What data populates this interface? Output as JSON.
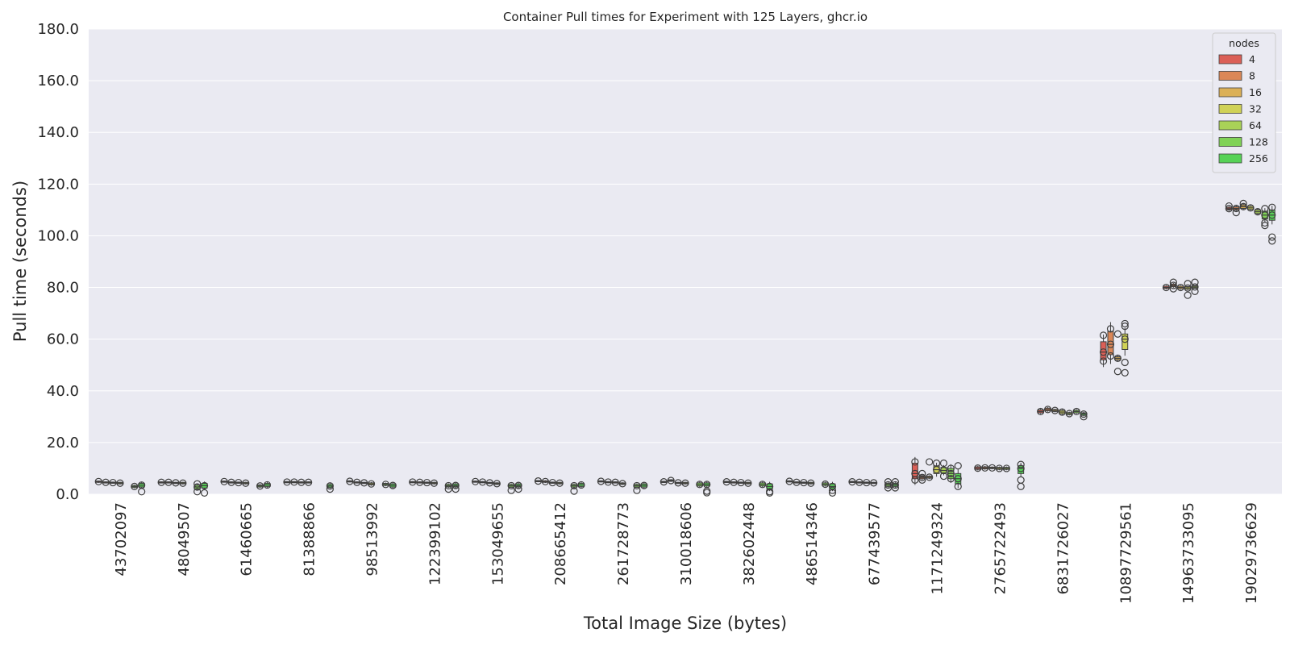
{
  "chart_data": {
    "type": "box",
    "title": "Container Pull times for Experiment with 125 Layers, ghcr.io",
    "xlabel": "Total Image Size (bytes)",
    "ylabel": "Pull time (seconds)",
    "ylim": [
      0,
      180
    ],
    "yticks": [
      "0.0",
      "20.0",
      "40.0",
      "60.0",
      "80.0",
      "100.0",
      "120.0",
      "140.0",
      "160.0",
      "180.0"
    ],
    "grid": true,
    "legend": {
      "title": "nodes",
      "position": "top-right"
    },
    "categories": [
      "43702097",
      "48049507",
      "61460665",
      "81388866",
      "98513992",
      "122399102",
      "153049655",
      "208665412",
      "261728773",
      "310018606",
      "382602448",
      "486514346",
      "677439577",
      "1171249324",
      "2765722493",
      "6831726027",
      "10897729561",
      "14963733095",
      "19029736629"
    ],
    "series": [
      {
        "name": "4",
        "color": "#db5f57",
        "values": [
          {
            "q1": 4.6,
            "median": 4.9,
            "q3": 5.1,
            "fliers": []
          },
          {
            "q1": 4.4,
            "median": 4.6,
            "q3": 4.8,
            "fliers": []
          },
          {
            "q1": 4.7,
            "median": 4.9,
            "q3": 5.1,
            "fliers": []
          },
          {
            "q1": 4.5,
            "median": 4.7,
            "q3": 4.9,
            "fliers": []
          },
          {
            "q1": 4.8,
            "median": 5.0,
            "q3": 5.2,
            "fliers": []
          },
          {
            "q1": 4.5,
            "median": 4.7,
            "q3": 4.9,
            "fliers": []
          },
          {
            "q1": 4.7,
            "median": 4.9,
            "q3": 5.1,
            "fliers": []
          },
          {
            "q1": 4.9,
            "median": 5.1,
            "q3": 5.3,
            "fliers": []
          },
          {
            "q1": 4.8,
            "median": 5.0,
            "q3": 5.2,
            "fliers": []
          },
          {
            "q1": 4.6,
            "median": 4.8,
            "q3": 5.0,
            "fliers": []
          },
          {
            "q1": 4.6,
            "median": 4.8,
            "q3": 5.0,
            "fliers": []
          },
          {
            "q1": 4.8,
            "median": 5.0,
            "q3": 5.2,
            "fliers": []
          },
          {
            "q1": 4.6,
            "median": 4.8,
            "q3": 5.0,
            "fliers": []
          },
          {
            "q1": 6.0,
            "median": 8.0,
            "q3": 12.0,
            "fliers": [
              5.5,
              12.5
            ]
          },
          {
            "q1": 9.6,
            "median": 10.1,
            "q3": 10.6,
            "fliers": []
          },
          {
            "q1": 31.5,
            "median": 32.0,
            "q3": 32.6,
            "fliers": []
          },
          {
            "q1": 52.0,
            "median": 55.0,
            "q3": 59.0,
            "fliers": [
              51.5,
              61.5
            ]
          },
          {
            "q1": 79.6,
            "median": 80.0,
            "q3": 80.5,
            "fliers": []
          },
          {
            "q1": 110.0,
            "median": 110.5,
            "q3": 111.0,
            "fliers": [
              111.5
            ]
          }
        ]
      },
      {
        "name": "8",
        "color": "#db8757",
        "values": [
          {
            "q1": 4.4,
            "median": 4.6,
            "q3": 4.8,
            "fliers": []
          },
          {
            "q1": 4.4,
            "median": 4.6,
            "q3": 4.8,
            "fliers": []
          },
          {
            "q1": 4.4,
            "median": 4.6,
            "q3": 4.8,
            "fliers": []
          },
          {
            "q1": 4.5,
            "median": 4.7,
            "q3": 4.9,
            "fliers": []
          },
          {
            "q1": 4.4,
            "median": 4.6,
            "q3": 4.8,
            "fliers": []
          },
          {
            "q1": 4.4,
            "median": 4.6,
            "q3": 4.8,
            "fliers": []
          },
          {
            "q1": 4.5,
            "median": 4.7,
            "q3": 4.9,
            "fliers": []
          },
          {
            "q1": 4.6,
            "median": 4.9,
            "q3": 5.2,
            "fliers": []
          },
          {
            "q1": 4.5,
            "median": 4.7,
            "q3": 4.9,
            "fliers": []
          },
          {
            "q1": 5.0,
            "median": 5.3,
            "q3": 5.6,
            "fliers": []
          },
          {
            "q1": 4.4,
            "median": 4.6,
            "q3": 4.8,
            "fliers": []
          },
          {
            "q1": 4.4,
            "median": 4.6,
            "q3": 4.8,
            "fliers": []
          },
          {
            "q1": 4.4,
            "median": 4.6,
            "q3": 4.8,
            "fliers": []
          },
          {
            "q1": 6.0,
            "median": 6.5,
            "q3": 7.2,
            "fliers": [
              5.5,
              8.0
            ]
          },
          {
            "q1": 9.8,
            "median": 10.2,
            "q3": 10.6,
            "fliers": []
          },
          {
            "q1": 32.3,
            "median": 32.8,
            "q3": 33.3,
            "fliers": []
          },
          {
            "q1": 54.0,
            "median": 58.0,
            "q3": 63.0,
            "fliers": [
              53.5,
              64.0
            ]
          },
          {
            "q1": 80.3,
            "median": 80.8,
            "q3": 81.3,
            "fliers": [
              79.5,
              82.0
            ]
          },
          {
            "q1": 110.0,
            "median": 110.6,
            "q3": 111.2,
            "fliers": [
              109.0
            ]
          }
        ]
      },
      {
        "name": "16",
        "color": "#dbb057",
        "values": [
          {
            "q1": 4.3,
            "median": 4.5,
            "q3": 4.7,
            "fliers": []
          },
          {
            "q1": 4.2,
            "median": 4.4,
            "q3": 4.6,
            "fliers": []
          },
          {
            "q1": 4.3,
            "median": 4.5,
            "q3": 4.7,
            "fliers": []
          },
          {
            "q1": 4.4,
            "median": 4.6,
            "q3": 4.8,
            "fliers": []
          },
          {
            "q1": 4.2,
            "median": 4.4,
            "q3": 4.6,
            "fliers": []
          },
          {
            "q1": 4.3,
            "median": 4.5,
            "q3": 4.7,
            "fliers": []
          },
          {
            "q1": 4.2,
            "median": 4.4,
            "q3": 4.6,
            "fliers": []
          },
          {
            "q1": 4.3,
            "median": 4.5,
            "q3": 4.7,
            "fliers": []
          },
          {
            "q1": 4.4,
            "median": 4.6,
            "q3": 4.8,
            "fliers": []
          },
          {
            "q1": 4.2,
            "median": 4.4,
            "q3": 4.6,
            "fliers": []
          },
          {
            "q1": 4.3,
            "median": 4.5,
            "q3": 4.7,
            "fliers": []
          },
          {
            "q1": 4.3,
            "median": 4.5,
            "q3": 4.7,
            "fliers": []
          },
          {
            "q1": 4.3,
            "median": 4.5,
            "q3": 4.7,
            "fliers": []
          },
          {
            "q1": 6.2,
            "median": 6.6,
            "q3": 7.0,
            "fliers": [
              12.5
            ]
          },
          {
            "q1": 9.9,
            "median": 10.2,
            "q3": 10.5,
            "fliers": []
          },
          {
            "q1": 32.0,
            "median": 32.4,
            "q3": 32.8,
            "fliers": []
          },
          {
            "q1": 52.0,
            "median": 52.6,
            "q3": 53.2,
            "fliers": [
              47.5,
              62.0
            ]
          },
          {
            "q1": 79.5,
            "median": 80.0,
            "q3": 80.5,
            "fliers": []
          },
          {
            "q1": 110.6,
            "median": 111.3,
            "q3": 112.0,
            "fliers": [
              112.5
            ]
          }
        ]
      },
      {
        "name": "32",
        "color": "#d0d257",
        "values": [
          {
            "q1": 4.0,
            "median": 4.3,
            "q3": 4.6,
            "fliers": []
          },
          {
            "q1": 4.0,
            "median": 4.3,
            "q3": 4.6,
            "fliers": []
          },
          {
            "q1": 4.0,
            "median": 4.3,
            "q3": 4.6,
            "fliers": []
          },
          {
            "q1": 4.4,
            "median": 4.6,
            "q3": 4.8,
            "fliers": []
          },
          {
            "q1": 3.6,
            "median": 4.0,
            "q3": 4.4,
            "fliers": []
          },
          {
            "q1": 4.0,
            "median": 4.3,
            "q3": 4.6,
            "fliers": []
          },
          {
            "q1": 3.8,
            "median": 4.1,
            "q3": 4.4,
            "fliers": []
          },
          {
            "q1": 4.0,
            "median": 4.3,
            "q3": 4.6,
            "fliers": []
          },
          {
            "q1": 3.8,
            "median": 4.1,
            "q3": 4.4,
            "fliers": []
          },
          {
            "q1": 4.0,
            "median": 4.3,
            "q3": 4.6,
            "fliers": []
          },
          {
            "q1": 4.0,
            "median": 4.3,
            "q3": 4.6,
            "fliers": []
          },
          {
            "q1": 4.0,
            "median": 4.3,
            "q3": 4.6,
            "fliers": []
          },
          {
            "q1": 4.2,
            "median": 4.4,
            "q3": 4.6,
            "fliers": []
          },
          {
            "q1": 8.0,
            "median": 9.5,
            "q3": 11.0,
            "fliers": [
              12.0
            ]
          },
          {
            "q1": 9.6,
            "median": 10.0,
            "q3": 10.4,
            "fliers": []
          },
          {
            "q1": 31.2,
            "median": 31.8,
            "q3": 32.4,
            "fliers": []
          },
          {
            "q1": 56.0,
            "median": 60.0,
            "q3": 62.0,
            "fliers": [
              51.0,
              47.0,
              65.0,
              66.0
            ]
          },
          {
            "q1": 79.3,
            "median": 79.8,
            "q3": 80.3,
            "fliers": [
              77.0,
              81.5
            ]
          },
          {
            "q1": 110.2,
            "median": 110.8,
            "q3": 111.4,
            "fliers": []
          }
        ]
      },
      {
        "name": "64",
        "color": "#a9d257",
        "values": [
          null,
          null,
          null,
          null,
          null,
          null,
          null,
          null,
          null,
          null,
          null,
          null,
          null,
          {
            "q1": 8.2,
            "median": 9.2,
            "q3": 10.4,
            "fliers": [
              7.0,
              12.0
            ]
          },
          {
            "q1": 9.6,
            "median": 10.0,
            "q3": 10.4,
            "fliers": []
          },
          {
            "q1": 30.8,
            "median": 31.2,
            "q3": 31.6,
            "fliers": []
          },
          null,
          {
            "q1": 79.8,
            "median": 80.2,
            "q3": 80.6,
            "fliers": [
              78.5,
              82.0
            ]
          },
          {
            "q1": 108.6,
            "median": 109.3,
            "q3": 110.0,
            "fliers": []
          }
        ]
      },
      {
        "name": "128",
        "color": "#80d257",
        "values": [
          {
            "q1": 2.6,
            "median": 3.0,
            "q3": 3.4,
            "fliers": []
          },
          {
            "q1": 2.0,
            "median": 2.8,
            "q3": 3.5,
            "fliers": [
              1.0,
              4.0
            ]
          },
          {
            "q1": 2.8,
            "median": 3.2,
            "q3": 3.6,
            "fliers": []
          },
          null,
          {
            "q1": 3.4,
            "median": 3.8,
            "q3": 4.2,
            "fliers": []
          },
          {
            "q1": 2.8,
            "median": 3.3,
            "q3": 3.8,
            "fliers": [
              2.0
            ]
          },
          {
            "q1": 2.8,
            "median": 3.3,
            "q3": 3.8,
            "fliers": [
              1.5
            ]
          },
          {
            "q1": 2.8,
            "median": 3.3,
            "q3": 3.8,
            "fliers": [
              1.2
            ]
          },
          {
            "q1": 2.8,
            "median": 3.3,
            "q3": 3.8,
            "fliers": [
              1.5
            ]
          },
          {
            "q1": 3.2,
            "median": 3.8,
            "q3": 4.4,
            "fliers": []
          },
          {
            "q1": 3.2,
            "median": 3.8,
            "q3": 4.4,
            "fliers": []
          },
          {
            "q1": 3.4,
            "median": 3.9,
            "q3": 4.4,
            "fliers": []
          },
          {
            "q1": 3.0,
            "median": 3.6,
            "q3": 4.2,
            "fliers": [
              2.5,
              4.8
            ]
          },
          {
            "q1": 6.0,
            "median": 8.0,
            "q3": 10.0,
            "fliers": [
              6.0,
              10.0
            ]
          },
          null,
          {
            "q1": 31.5,
            "median": 32.0,
            "q3": 32.5,
            "fliers": []
          },
          null,
          null,
          {
            "q1": 106.5,
            "median": 108.0,
            "q3": 109.5,
            "fliers": [
              104.0,
              105.0,
              110.5
            ]
          }
        ]
      },
      {
        "name": "256",
        "color": "#57d257",
        "values": [
          {
            "q1": 2.8,
            "median": 3.5,
            "q3": 4.2,
            "fliers": [
              1.0
            ]
          },
          {
            "q1": 2.4,
            "median": 3.3,
            "q3": 4.2,
            "fliers": [
              0.5
            ]
          },
          {
            "q1": 3.0,
            "median": 3.6,
            "q3": 4.2,
            "fliers": []
          },
          {
            "q1": 2.6,
            "median": 3.2,
            "q3": 3.8,
            "fliers": [
              2.0
            ]
          },
          {
            "q1": 2.8,
            "median": 3.4,
            "q3": 4.0,
            "fliers": []
          },
          {
            "q1": 2.8,
            "median": 3.4,
            "q3": 4.0,
            "fliers": [
              2.0
            ]
          },
          {
            "q1": 2.8,
            "median": 3.4,
            "q3": 4.0,
            "fliers": [
              2.0
            ]
          },
          {
            "q1": 3.0,
            "median": 3.6,
            "q3": 4.2,
            "fliers": []
          },
          {
            "q1": 2.8,
            "median": 3.4,
            "q3": 4.0,
            "fliers": []
          },
          {
            "q1": 3.2,
            "median": 3.8,
            "q3": 4.4,
            "fliers": [
              0.6,
              1.2
            ]
          },
          {
            "q1": 2.0,
            "median": 3.0,
            "q3": 4.0,
            "fliers": [
              0.5,
              1.0
            ]
          },
          {
            "q1": 2.0,
            "median": 3.0,
            "q3": 4.0,
            "fliers": [
              0.5,
              1.5
            ]
          },
          {
            "q1": 3.0,
            "median": 3.6,
            "q3": 4.2,
            "fliers": [
              2.5,
              4.8
            ]
          },
          {
            "q1": 4.0,
            "median": 6.0,
            "q3": 8.0,
            "fliers": [
              3.0,
              11.0
            ]
          },
          {
            "q1": 8.0,
            "median": 10.0,
            "q3": 11.0,
            "fliers": [
              3.0,
              5.5,
              11.5
            ]
          },
          {
            "q1": 30.5,
            "median": 31.0,
            "q3": 31.5,
            "fliers": [
              30.0
            ]
          },
          null,
          null,
          {
            "q1": 106.0,
            "median": 108.0,
            "q3": 110.0,
            "fliers": [
              98.0,
              99.5,
              111.0
            ]
          }
        ]
      }
    ]
  }
}
